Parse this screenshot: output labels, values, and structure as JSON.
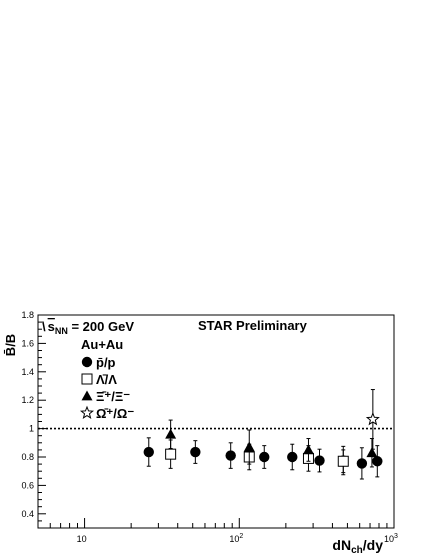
{
  "chart_data": {
    "type": "scatter",
    "title": "",
    "xlabel": "dN_ch/dy",
    "ylabel": "B̄/B",
    "x_scale": "log",
    "xlim": [
      5,
      1000
    ],
    "ylim": [
      0.3,
      1.8
    ],
    "x_tick_labels": [
      {
        "value": 10,
        "base": "10",
        "exp": ""
      },
      {
        "value": 100,
        "base": "10",
        "exp": "2"
      },
      {
        "value": 1000,
        "base": "10",
        "exp": "3"
      }
    ],
    "y_ticks": [
      0.4,
      0.6,
      0.8,
      1.0,
      1.2,
      1.4,
      1.6,
      1.8
    ],
    "y_tick_labels": [
      "0.4",
      "0.6",
      "0.8",
      "1",
      "1.2",
      "1.4",
      "1.6",
      "1.8"
    ],
    "reference_line": 1.0,
    "grid": false,
    "legend_position": "top-left",
    "annotations": {
      "energy": "s_NN = 200 GeV",
      "energy_prefix": "\\",
      "energy_sub": "NN",
      "energy_rest": " = 200 GeV",
      "status": "STAR Preliminary",
      "system": "Au+Au"
    },
    "series": [
      {
        "name": "p̄/p",
        "marker": "filled-circle",
        "x": [
          26,
          52,
          88,
          145,
          220,
          330,
          470,
          620,
          780
        ],
        "y": [
          0.835,
          0.835,
          0.81,
          0.8,
          0.8,
          0.775,
          0.775,
          0.755,
          0.77
        ],
        "err": [
          0.1,
          0.08,
          0.09,
          0.08,
          0.09,
          0.08,
          0.1,
          0.11,
          0.11
        ]
      },
      {
        "name": "Λ̄/Λ",
        "marker": "open-square",
        "x": [
          36,
          116,
          280,
          470
        ],
        "y": [
          0.82,
          0.8,
          0.79,
          0.77
        ],
        "err": [
          0.1,
          0.09,
          0.09,
          0.08
        ]
      },
      {
        "name": "Ξ̄⁺/Ξ⁻",
        "marker": "filled-triangle",
        "x": [
          36,
          116,
          280,
          720
        ],
        "y": [
          0.96,
          0.87,
          0.85,
          0.83
        ],
        "err": [
          0.1,
          0.12,
          0.08,
          0.1
        ]
      },
      {
        "name": "Ω̄⁺/Ω⁻",
        "marker": "open-star",
        "x": [
          730
        ],
        "y": [
          1.065
        ],
        "err": [
          0.21
        ]
      }
    ],
    "legend": [
      {
        "marker": "filled-circle",
        "label": "p̄/p"
      },
      {
        "marker": "open-square",
        "label": "Λ̄/Λ"
      },
      {
        "marker": "filled-triangle",
        "label": "Ξ̄⁺/Ξ⁻"
      },
      {
        "marker": "open-star",
        "label": "Ω̄⁺/Ω⁻"
      }
    ]
  }
}
